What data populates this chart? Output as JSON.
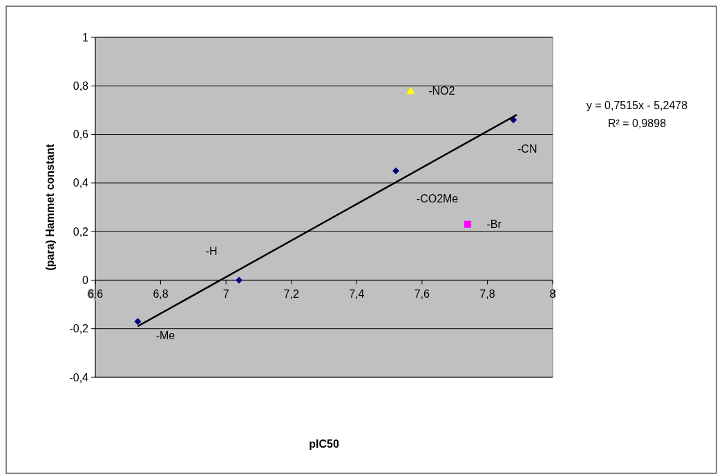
{
  "chart_data": {
    "type": "scatter",
    "xlabel": "pIC50",
    "ylabel": "(para) Hammet constant",
    "xlim": [
      6.6,
      8
    ],
    "ylim": [
      -0.4,
      1
    ],
    "xticks": [
      {
        "value": 6.6,
        "label": "6,6"
      },
      {
        "value": 6.8,
        "label": "6,8"
      },
      7,
      {
        "value": 7.2,
        "label": "7,2"
      },
      {
        "value": 7.4,
        "label": "7,4"
      },
      {
        "value": 7.6,
        "label": "7,6"
      },
      {
        "value": 7.8,
        "label": "7,8"
      },
      8
    ],
    "yticks": [
      {
        "value": -0.4,
        "label": "-0,4"
      },
      {
        "value": -0.2,
        "label": "-0,2"
      },
      0,
      {
        "value": 0.2,
        "label": "0,2"
      },
      {
        "value": 0.4,
        "label": "0,4"
      },
      {
        "value": 0.6,
        "label": "0,6"
      },
      {
        "value": 0.8,
        "label": "0,8"
      },
      1
    ],
    "grid": "y",
    "series": [
      {
        "marker": "diamond",
        "color": "#000080",
        "x": [
          6.73,
          7.04,
          7.52,
          7.88
        ],
        "values": [
          -0.17,
          0,
          0.45,
          0.66
        ]
      },
      {
        "marker": "triangle",
        "color": "#ffff00",
        "x": [
          7.565
        ],
        "values": [
          0.78
        ]
      },
      {
        "marker": "square",
        "color": "#ff00ff",
        "x": [
          7.74
        ],
        "values": [
          0.23
        ]
      },
      {
        "type": "line",
        "marker": "none",
        "color": "#000000",
        "x": [
          6.73,
          7.89
        ],
        "values": [
          -0.19,
          0.681
        ]
      }
    ],
    "annotations": [
      {
        "text": "-NO2",
        "x": 7.565,
        "y": 0.78
      },
      {
        "text": "-CN",
        "x": 7.88,
        "y": 0.66
      },
      {
        "text": "-CO2Me",
        "x": 7.52,
        "y": 0.45
      },
      {
        "text": "-Br",
        "x": 7.74,
        "y": 0.23
      },
      {
        "text": "-H",
        "x": 7.04,
        "y": 0
      },
      {
        "text": "-Me",
        "x": 6.73,
        "y": -0.17
      },
      "y = 0,7515x - 5,2478",
      "R² = 0,9898"
    ]
  }
}
